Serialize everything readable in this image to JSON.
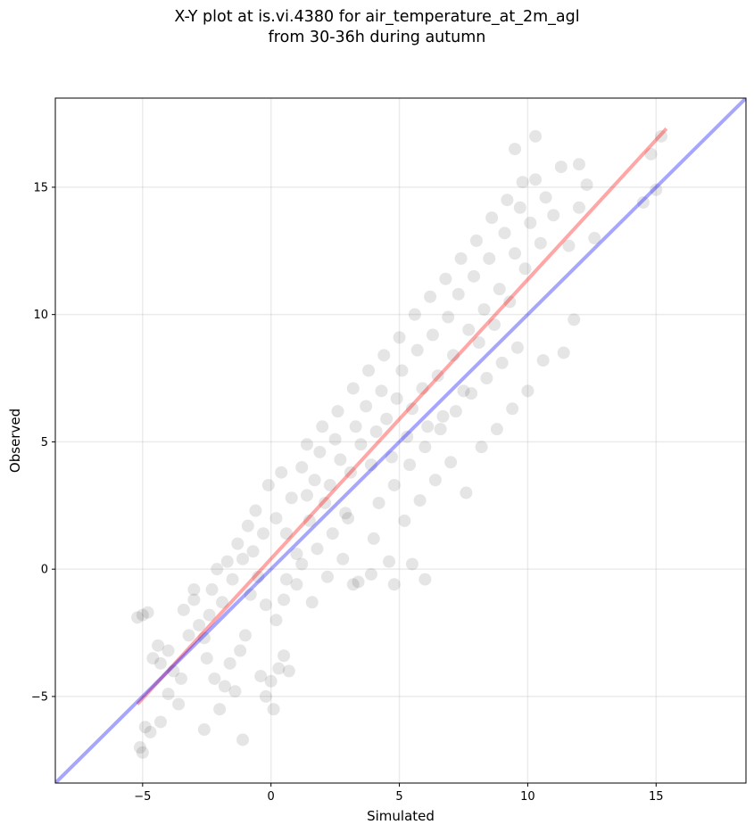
{
  "chart_data": {
    "type": "scatter",
    "title_line1": "X-Y plot at is.vi.4380 for air_temperature_at_2m_agl",
    "title_line2": "from 30-36h during autumn",
    "xlabel": "Simulated",
    "ylabel": "Observed",
    "xlim": [
      -8.4,
      18.5
    ],
    "ylim": [
      -8.4,
      18.5
    ],
    "xticks": [
      -5,
      0,
      5,
      10,
      15
    ],
    "yticks": [
      -5,
      0,
      5,
      10,
      15
    ],
    "xtick_labels": [
      "−5",
      "0",
      "5",
      "10",
      "15"
    ],
    "ytick_labels": [
      "−5",
      "0",
      "5",
      "10",
      "15"
    ],
    "grid": true,
    "point_color": "#000000",
    "point_alpha": 0.1,
    "series": [
      {
        "type": "scatter",
        "points": [
          [
            -5.2,
            -1.9
          ],
          [
            -5.0,
            -1.8
          ],
          [
            -4.8,
            -1.7
          ],
          [
            -4.6,
            -3.5
          ],
          [
            -4.4,
            -3.0
          ],
          [
            -4.3,
            -3.7
          ],
          [
            -4.9,
            -6.2
          ],
          [
            -4.7,
            -6.4
          ],
          [
            -5.1,
            -7.0
          ],
          [
            -5.0,
            -7.2
          ],
          [
            -4.0,
            -3.2
          ],
          [
            -3.8,
            -4.0
          ],
          [
            -3.5,
            -4.3
          ],
          [
            -3.2,
            -2.6
          ],
          [
            -3.0,
            -1.2
          ],
          [
            -2.8,
            -2.2
          ],
          [
            -2.6,
            -2.7
          ],
          [
            -2.5,
            -3.5
          ],
          [
            -2.2,
            -4.3
          ],
          [
            -2.0,
            -5.5
          ],
          [
            -1.8,
            -4.6
          ],
          [
            -1.6,
            -3.7
          ],
          [
            -1.4,
            -4.8
          ],
          [
            -1.2,
            -3.2
          ],
          [
            -1.0,
            -2.6
          ],
          [
            -0.8,
            -1.0
          ],
          [
            -0.5,
            -0.3
          ],
          [
            -0.4,
            -4.2
          ],
          [
            -0.2,
            -5.0
          ],
          [
            0.0,
            -4.4
          ],
          [
            0.1,
            -5.5
          ],
          [
            0.3,
            -3.9
          ],
          [
            0.5,
            -3.4
          ],
          [
            0.7,
            -4.0
          ],
          [
            -2.4,
            -1.8
          ],
          [
            -2.3,
            -0.8
          ],
          [
            -2.1,
            0.0
          ],
          [
            -1.9,
            -1.3
          ],
          [
            -1.7,
            0.3
          ],
          [
            -1.5,
            -0.4
          ],
          [
            -1.3,
            1.0
          ],
          [
            -1.1,
            0.4
          ],
          [
            -0.9,
            1.7
          ],
          [
            -0.7,
            0.7
          ],
          [
            -0.6,
            2.3
          ],
          [
            -0.3,
            1.4
          ],
          [
            -0.1,
            3.3
          ],
          [
            0.2,
            2.0
          ],
          [
            0.4,
            3.8
          ],
          [
            0.6,
            1.4
          ],
          [
            0.8,
            2.8
          ],
          [
            1.0,
            0.6
          ],
          [
            1.2,
            4.0
          ],
          [
            1.4,
            2.9
          ],
          [
            1.5,
            1.9
          ],
          [
            1.7,
            3.5
          ],
          [
            1.9,
            4.6
          ],
          [
            2.1,
            2.6
          ],
          [
            2.3,
            3.3
          ],
          [
            2.5,
            5.1
          ],
          [
            2.7,
            4.3
          ],
          [
            2.9,
            2.2
          ],
          [
            3.1,
            3.8
          ],
          [
            3.3,
            5.6
          ],
          [
            3.5,
            4.9
          ],
          [
            3.7,
            6.4
          ],
          [
            3.9,
            4.1
          ],
          [
            4.1,
            5.4
          ],
          [
            4.3,
            7.0
          ],
          [
            4.5,
            5.9
          ],
          [
            4.7,
            4.4
          ],
          [
            4.9,
            6.7
          ],
          [
            5.1,
            7.8
          ],
          [
            5.3,
            5.2
          ],
          [
            5.5,
            6.3
          ],
          [
            5.7,
            8.6
          ],
          [
            5.9,
            7.1
          ],
          [
            6.1,
            5.6
          ],
          [
            6.3,
            9.2
          ],
          [
            6.5,
            7.6
          ],
          [
            6.7,
            6.0
          ],
          [
            6.9,
            9.9
          ],
          [
            7.1,
            8.4
          ],
          [
            7.3,
            10.8
          ],
          [
            7.5,
            7.0
          ],
          [
            7.7,
            9.4
          ],
          [
            7.9,
            11.5
          ],
          [
            8.1,
            8.9
          ],
          [
            8.3,
            10.2
          ],
          [
            8.5,
            12.2
          ],
          [
            8.7,
            9.6
          ],
          [
            8.9,
            11.0
          ],
          [
            9.1,
            13.2
          ],
          [
            9.3,
            10.5
          ],
          [
            9.5,
            12.4
          ],
          [
            9.7,
            14.2
          ],
          [
            9.9,
            11.8
          ],
          [
            10.1,
            13.6
          ],
          [
            10.3,
            15.3
          ],
          [
            10.5,
            12.8
          ],
          [
            10.7,
            14.6
          ],
          [
            11.0,
            13.9
          ],
          [
            11.3,
            15.8
          ],
          [
            11.6,
            12.7
          ],
          [
            12.0,
            14.2
          ],
          [
            12.3,
            15.1
          ],
          [
            12.6,
            13.0
          ],
          [
            14.8,
            16.3
          ],
          [
            15.0,
            14.9
          ],
          [
            15.2,
            17.0
          ],
          [
            14.5,
            14.4
          ],
          [
            9.5,
            16.5
          ],
          [
            10.3,
            17.0
          ],
          [
            12.0,
            15.9
          ],
          [
            1.0,
            -0.6
          ],
          [
            1.6,
            -1.3
          ],
          [
            2.2,
            -0.3
          ],
          [
            2.8,
            0.4
          ],
          [
            3.4,
            -0.5
          ],
          [
            4.0,
            1.2
          ],
          [
            4.6,
            0.3
          ],
          [
            5.2,
            1.9
          ],
          [
            5.8,
            2.7
          ],
          [
            6.4,
            3.5
          ],
          [
            7.0,
            4.2
          ],
          [
            7.6,
            3.0
          ],
          [
            8.2,
            4.8
          ],
          [
            8.8,
            5.5
          ],
          [
            9.4,
            6.3
          ],
          [
            10.0,
            7.0
          ],
          [
            10.6,
            8.2
          ],
          [
            11.4,
            8.5
          ],
          [
            11.8,
            9.8
          ],
          [
            6.0,
            -0.4
          ],
          [
            5.5,
            0.2
          ],
          [
            4.8,
            -0.6
          ],
          [
            3.9,
            -0.2
          ],
          [
            3.2,
            -0.6
          ],
          [
            0.2,
            -2.0
          ],
          [
            -0.2,
            -1.4
          ],
          [
            0.5,
            -1.2
          ],
          [
            -3.0,
            -0.8
          ],
          [
            -3.4,
            -1.6
          ],
          [
            -4.0,
            -4.9
          ],
          [
            -3.6,
            -5.3
          ],
          [
            -4.3,
            -6.0
          ],
          [
            -2.6,
            -6.3
          ],
          [
            -1.1,
            -6.7
          ],
          [
            1.4,
            4.9
          ],
          [
            2.0,
            5.6
          ],
          [
            2.6,
            6.2
          ],
          [
            3.2,
            7.1
          ],
          [
            3.8,
            7.8
          ],
          [
            4.4,
            8.4
          ],
          [
            5.0,
            9.1
          ],
          [
            5.6,
            10.0
          ],
          [
            6.2,
            10.7
          ],
          [
            6.8,
            11.4
          ],
          [
            7.4,
            12.2
          ],
          [
            8.0,
            12.9
          ],
          [
            8.6,
            13.8
          ],
          [
            9.2,
            14.5
          ],
          [
            9.8,
            15.2
          ],
          [
            4.2,
            2.6
          ],
          [
            4.8,
            3.3
          ],
          [
            5.4,
            4.1
          ],
          [
            6.0,
            4.8
          ],
          [
            6.6,
            5.5
          ],
          [
            7.2,
            6.2
          ],
          [
            7.8,
            6.9
          ],
          [
            8.4,
            7.5
          ],
          [
            9.0,
            8.1
          ],
          [
            9.6,
            8.7
          ],
          [
            3.0,
            2.0
          ],
          [
            2.4,
            1.4
          ],
          [
            1.8,
            0.8
          ],
          [
            1.2,
            0.2
          ],
          [
            0.6,
            -0.4
          ]
        ]
      },
      {
        "name": "",
        "type": "line",
        "color": "#ff0000",
        "alpha": 0.35,
        "x": [
          -5.2,
          15.4
        ],
        "y": [
          -5.3,
          17.3
        ]
      },
      {
        "name": "",
        "type": "line",
        "color": "#0000ff",
        "alpha": 0.35,
        "x": [
          -8.4,
          18.5
        ],
        "y": [
          -8.4,
          18.5
        ]
      }
    ]
  }
}
